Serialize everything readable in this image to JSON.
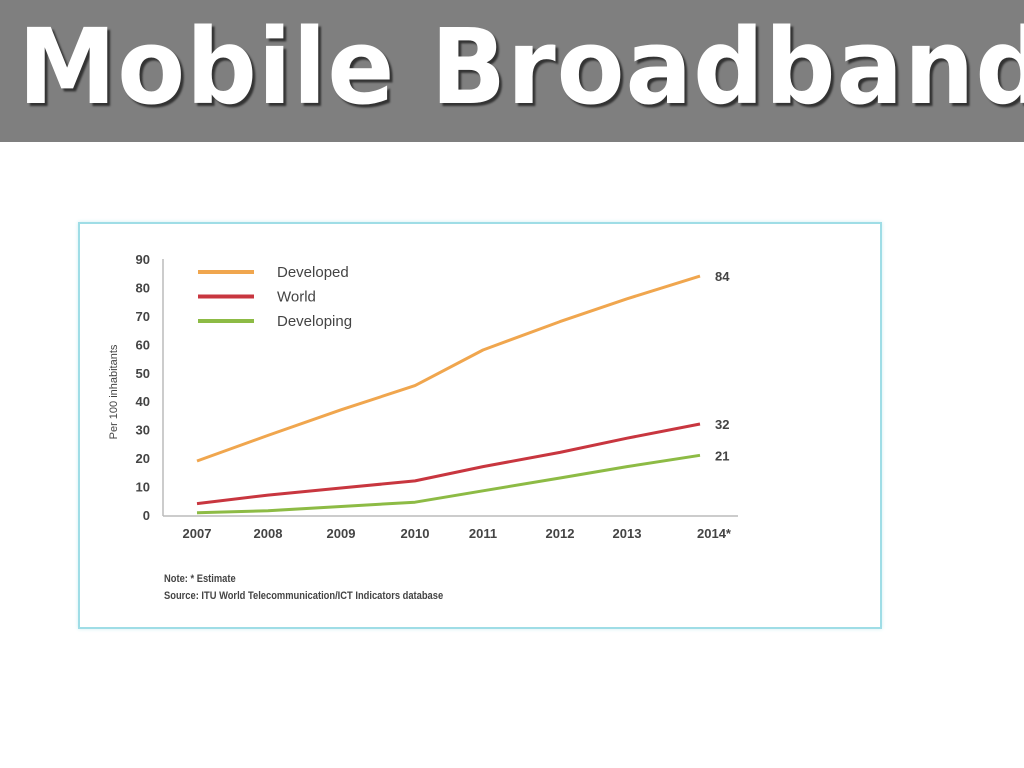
{
  "header": {
    "title": "Mobile Broadband"
  },
  "chart_data": {
    "type": "line",
    "title": "",
    "xlabel": "",
    "ylabel": "Per 100 inhabitants",
    "categories": [
      "2007",
      "2008",
      "2009",
      "2010",
      "2011",
      "2012",
      "2013",
      "2014*"
    ],
    "ylim": [
      0,
      90
    ],
    "yticks": [
      "0",
      "10",
      "20",
      "30",
      "40",
      "50",
      "60",
      "70",
      "80",
      "90"
    ],
    "legend_position": "top-left",
    "series": [
      {
        "name": "Developed",
        "color": "#f0a64e",
        "values": [
          19,
          28,
          37,
          45.5,
          58,
          68,
          76,
          84
        ],
        "end_label": "84"
      },
      {
        "name": "World",
        "color": "#c8363f",
        "values": [
          4,
          7,
          9.5,
          12,
          17,
          22,
          27,
          32
        ],
        "end_label": "32"
      },
      {
        "name": "Developing",
        "color": "#8dbb45",
        "values": [
          0.8,
          1.5,
          3,
          4.5,
          8.5,
          13,
          17,
          21
        ],
        "end_label": "21"
      }
    ],
    "notes": [
      "Note: * Estimate",
      "Source: ITU World Telecommunication/ICT Indicators database"
    ]
  }
}
